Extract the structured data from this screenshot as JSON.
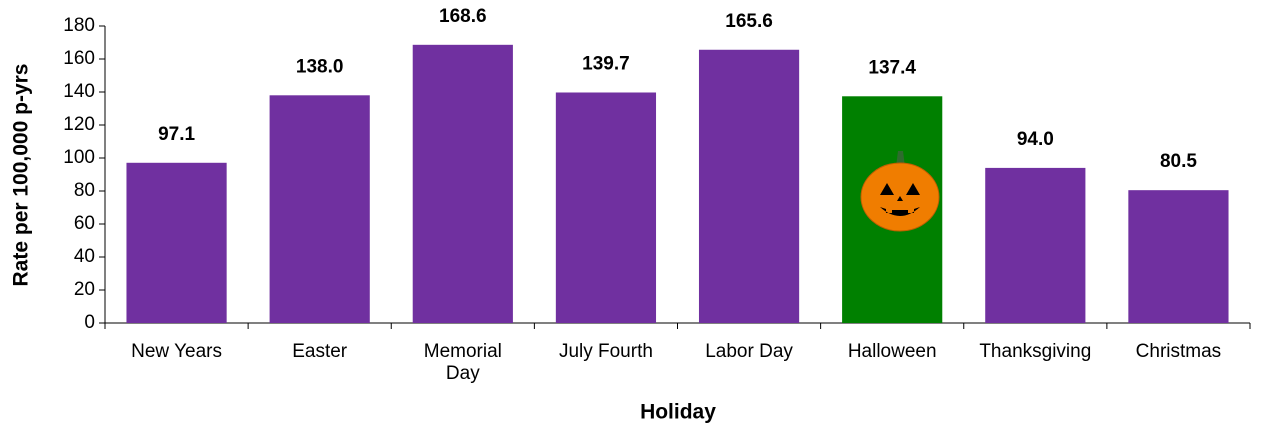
{
  "chart_data": {
    "type": "bar",
    "x_label": "Holiday",
    "y_label": "Rate per 100,000 p-yrs",
    "categories": [
      "New Years",
      "Easter",
      "Memorial Day",
      "July Fourth",
      "Labor Day",
      "Halloween",
      "Thanksgiving",
      "Christmas"
    ],
    "values": [
      97.1,
      138.0,
      168.6,
      139.7,
      165.6,
      137.4,
      94.0,
      80.5
    ],
    "value_labels": [
      "97.1",
      "138.0",
      "168.6",
      "139.7",
      "165.6",
      "137.4",
      "94.0",
      "80.5"
    ],
    "colors": [
      "#7030a0",
      "#7030a0",
      "#7030a0",
      "#7030a0",
      "#7030a0",
      "#008000",
      "#7030a0",
      "#7030a0"
    ],
    "ylim": [
      0,
      180
    ],
    "yticks": [
      0,
      20,
      40,
      60,
      80,
      100,
      120,
      140,
      160,
      180
    ],
    "grid": false
  }
}
